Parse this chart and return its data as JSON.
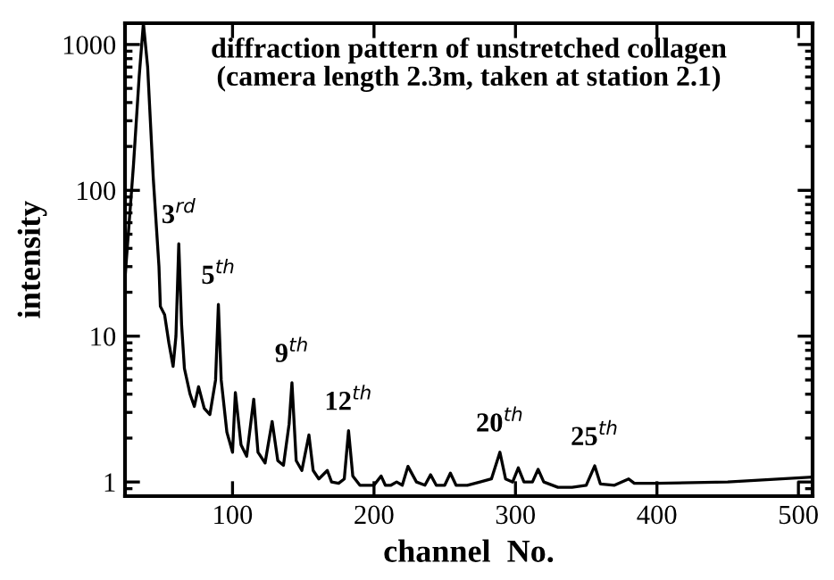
{
  "chart_data": {
    "type": "line",
    "title": "diffraction pattern of unstretched collagen\n(camera length 2.3m, taken at station 2.1)",
    "xlabel": "channel  No.",
    "ylabel": "intensity",
    "log": "y",
    "xlim": [
      24,
      510
    ],
    "ylim": [
      0.8,
      1400
    ],
    "xticks": [
      100,
      200,
      300,
      400,
      500
    ],
    "yticks": [
      1,
      10,
      100,
      1000
    ],
    "grid": false,
    "legend": false,
    "marker": "none",
    "line_style": "solid",
    "series": [
      {
        "color": "#000000",
        "x": [
          24,
          30,
          34,
          37,
          40,
          44,
          48,
          49,
          52,
          55,
          58,
          60,
          62,
          64,
          66,
          70,
          73,
          76,
          80,
          84,
          88,
          90,
          92,
          96,
          100,
          102,
          106,
          110,
          115,
          118,
          123,
          128,
          132,
          136,
          140,
          142,
          145,
          149,
          154,
          157,
          161,
          167,
          170,
          175,
          179,
          182,
          185,
          190,
          200,
          205,
          208,
          212,
          216,
          220,
          224,
          230,
          236,
          240,
          244,
          250,
          254,
          258,
          266,
          275,
          283,
          289,
          293,
          298,
          302,
          306,
          312,
          316,
          320,
          330,
          340,
          350,
          356,
          360,
          370,
          380,
          384,
          400,
          450,
          510
        ],
        "values": [
          25,
          150,
          600,
          1400,
          700,
          120,
          30,
          16,
          14,
          9,
          6.2,
          10,
          43,
          12,
          6,
          4,
          3.3,
          4.5,
          3.2,
          2.9,
          5,
          16.5,
          5,
          2.2,
          1.6,
          4.1,
          1.8,
          1.5,
          3.7,
          1.6,
          1.35,
          2.6,
          1.4,
          1.3,
          2.5,
          4.8,
          1.4,
          1.2,
          2.1,
          1.2,
          1.05,
          1.2,
          1.0,
          0.98,
          1.05,
          2.25,
          1.1,
          0.95,
          0.95,
          1.1,
          0.95,
          0.95,
          1.0,
          0.95,
          1.28,
          1.0,
          0.95,
          1.12,
          0.95,
          0.95,
          1.15,
          0.95,
          0.95,
          1.0,
          1.05,
          1.6,
          1.05,
          1.0,
          1.25,
          1.0,
          1.0,
          1.22,
          1.0,
          0.92,
          0.92,
          0.95,
          1.29,
          0.97,
          0.95,
          1.05,
          0.98,
          0.98,
          1.0,
          1.08
        ]
      }
    ],
    "annotations": [
      {
        "text": "3$^{rd}$",
        "x": 62,
        "y": 43
      },
      {
        "text": "5$^{th}$",
        "x": 90,
        "y": 16.5
      },
      {
        "text": "9$^{th}$",
        "x": 142,
        "y": 4.8
      },
      {
        "text": "12$^{th}$",
        "x": 182,
        "y": 2.25
      },
      {
        "text": "20$^{th}$",
        "x": 289,
        "y": 1.6
      },
      {
        "text": "25$^{th}$",
        "x": 356,
        "y": 1.29
      }
    ]
  }
}
